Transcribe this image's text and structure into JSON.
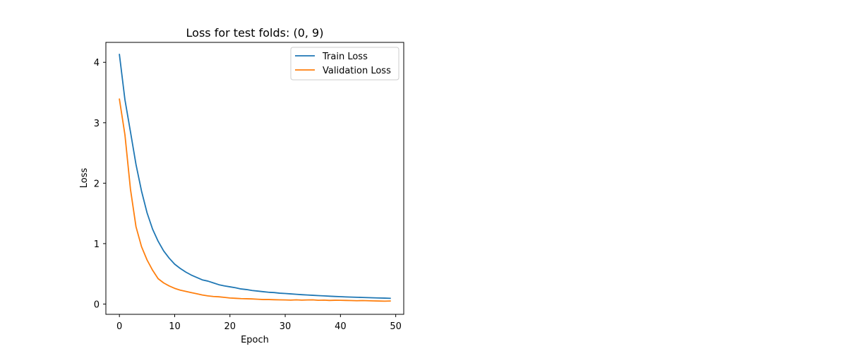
{
  "chart_data": {
    "type": "line",
    "title": "Loss for test folds: (0, 9)",
    "xlabel": "Epoch",
    "ylabel": "Loss",
    "xlim": [
      -2.45,
      51.45
    ],
    "ylim": [
      -0.17,
      4.33
    ],
    "xticks": [
      0,
      10,
      20,
      30,
      40,
      50
    ],
    "yticks": [
      0,
      1,
      2,
      3,
      4
    ],
    "grid": false,
    "legend_position": "top-right",
    "x": [
      0,
      1,
      2,
      3,
      4,
      5,
      6,
      7,
      8,
      9,
      10,
      11,
      12,
      13,
      14,
      15,
      16,
      17,
      18,
      19,
      20,
      21,
      22,
      23,
      24,
      25,
      26,
      27,
      28,
      29,
      30,
      31,
      32,
      33,
      34,
      35,
      36,
      37,
      38,
      39,
      40,
      41,
      42,
      43,
      44,
      45,
      46,
      47,
      48,
      49
    ],
    "series": [
      {
        "name": "Train Loss",
        "color": "#1f77b4",
        "values": [
          4.13,
          3.38,
          2.85,
          2.31,
          1.87,
          1.51,
          1.24,
          1.04,
          0.88,
          0.76,
          0.66,
          0.59,
          0.53,
          0.48,
          0.44,
          0.4,
          0.38,
          0.35,
          0.32,
          0.3,
          0.285,
          0.27,
          0.25,
          0.24,
          0.225,
          0.215,
          0.205,
          0.195,
          0.19,
          0.18,
          0.175,
          0.168,
          0.162,
          0.155,
          0.15,
          0.145,
          0.14,
          0.135,
          0.13,
          0.126,
          0.122,
          0.118,
          0.115,
          0.112,
          0.109,
          0.106,
          0.103,
          0.1,
          0.098,
          0.095
        ]
      },
      {
        "name": "Validation Loss",
        "color": "#ff7f0e",
        "values": [
          3.39,
          2.8,
          1.9,
          1.28,
          0.95,
          0.73,
          0.56,
          0.42,
          0.35,
          0.3,
          0.26,
          0.23,
          0.21,
          0.19,
          0.17,
          0.15,
          0.135,
          0.125,
          0.12,
          0.11,
          0.1,
          0.095,
          0.09,
          0.088,
          0.085,
          0.08,
          0.075,
          0.075,
          0.072,
          0.07,
          0.068,
          0.065,
          0.07,
          0.065,
          0.068,
          0.07,
          0.062,
          0.065,
          0.06,
          0.063,
          0.062,
          0.06,
          0.058,
          0.055,
          0.058,
          0.055,
          0.052,
          0.05,
          0.048,
          0.05
        ]
      }
    ]
  }
}
